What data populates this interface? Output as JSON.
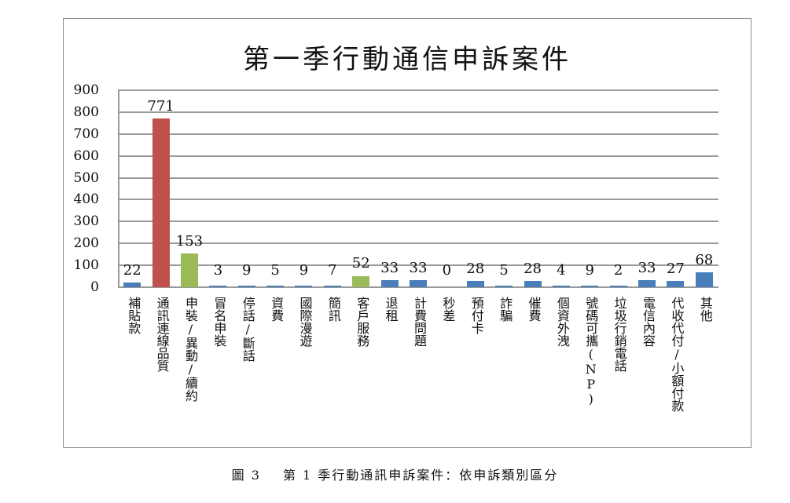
{
  "chart_data": {
    "type": "bar",
    "title": "第一季行動通信申訴案件",
    "xlabel": "",
    "ylabel": "",
    "ylim": [
      0,
      900
    ],
    "yticks": [
      0,
      100,
      200,
      300,
      400,
      500,
      600,
      700,
      800,
      900
    ],
    "grid": true,
    "legend": null,
    "categories": [
      "補貼款",
      "通訊連線品質",
      "申裝/異動/續約",
      "冒名申裝",
      "停話/斷話",
      "資費",
      "國際漫遊",
      "簡訊",
      "客戶服務",
      "退租",
      "計費問題",
      "秒差",
      "預付卡",
      "詐騙",
      "催費",
      "個資外洩",
      "號碼可攜(NP)",
      "垃圾行銷電話",
      "電信內容",
      "代收代付/小額付款",
      "其他"
    ],
    "values": [
      22,
      771,
      153,
      3,
      9,
      5,
      9,
      7,
      52,
      33,
      33,
      0,
      28,
      5,
      28,
      4,
      9,
      2,
      33,
      27,
      68
    ],
    "colors": [
      "#4a7ebb",
      "#c0504d",
      "#9bbb59",
      "#4a7ebb",
      "#4a7ebb",
      "#4a7ebb",
      "#4a7ebb",
      "#4a7ebb",
      "#9bbb59",
      "#4a7ebb",
      "#4a7ebb",
      "#4a7ebb",
      "#4a7ebb",
      "#4a7ebb",
      "#4a7ebb",
      "#4a7ebb",
      "#4a7ebb",
      "#4a7ebb",
      "#4a7ebb",
      "#4a7ebb",
      "#4a7ebb"
    ]
  },
  "caption": {
    "figure_label": "圖 3",
    "text": "第 1 季行動通訊申訴案件：依申訴類別區分"
  }
}
